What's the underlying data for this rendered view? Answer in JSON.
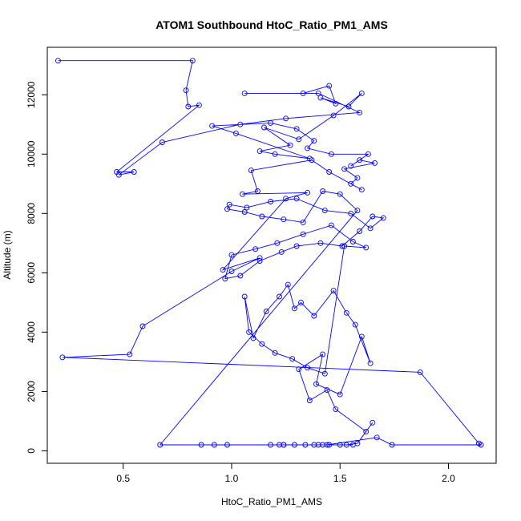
{
  "chart_data": {
    "type": "scatter",
    "title": "ATOM1 Southbound HtoC_Ratio_PM1_AMS",
    "xlabel": "HtoC_Ratio_PM1_AMS",
    "ylabel": "Altitude (m)",
    "xlim": [
      0.15,
      2.22
    ],
    "ylim": [
      -420,
      13600
    ],
    "xticks": [
      0.5,
      1.0,
      1.5,
      2.0
    ],
    "xtick_labels": [
      "0.5",
      "1.0",
      "1.5",
      "2.0"
    ],
    "yticks": [
      0,
      2000,
      4000,
      6000,
      8000,
      10000,
      12000
    ],
    "ytick_labels": [
      "0",
      "2000",
      "4000",
      "6000",
      "8000",
      "10000",
      "12000"
    ],
    "grid": false,
    "line_color": "#0000ff",
    "point_color": "#0000ff",
    "series": [
      {
        "x": [
          0.2,
          0.82,
          0.79,
          0.8,
          0.85,
          0.47,
          0.55,
          0.48,
          0.68,
          1.04,
          1.25,
          1.59,
          1.4,
          1.06,
          1.33,
          1.45,
          1.48,
          1.41,
          1.54,
          1.6,
          1.47,
          1.31,
          1.15,
          1.27,
          1.13,
          1.2,
          1.36,
          1.02,
          0.91,
          1.18,
          1.3,
          1.38,
          1.35,
          1.46,
          1.63,
          1.55,
          1.59,
          1.66,
          1.52,
          1.58,
          1.55,
          1.6,
          1.45,
          1.37,
          1.09,
          1.12,
          1.05,
          1.35,
          1.25,
          0.96,
          1.13,
          1.0,
          0.59,
          0.53,
          0.22,
          1.87,
          2.14,
          2.15,
          1.74,
          1.67,
          1.44,
          1.42,
          1.29,
          1.22,
          1.18,
          1.24,
          1.34,
          1.4,
          1.53,
          1.58,
          1.65,
          1.62,
          1.48,
          1.44,
          1.36,
          1.31,
          1.42,
          1.39,
          1.5,
          1.6,
          1.64,
          1.57,
          1.53,
          1.47,
          1.38,
          1.32,
          1.29,
          1.26,
          1.22,
          1.16,
          1.1,
          1.06,
          1.08,
          1.14,
          1.2,
          1.28,
          1.35,
          1.43,
          1.52,
          1.62,
          1.56,
          1.46,
          1.33,
          1.21,
          1.11,
          1.0,
          0.97,
          1.04,
          1.13,
          1.23,
          1.3,
          1.41,
          1.51,
          1.59,
          1.65,
          1.7,
          1.64,
          1.55,
          1.43,
          1.3,
          1.18,
          1.07,
          0.99,
          0.98,
          1.06,
          1.14,
          1.24,
          1.33,
          1.42,
          1.5,
          1.58,
          0.67,
          0.86,
          0.92,
          0.98,
          1.24,
          1.38,
          1.45,
          1.5,
          1.56
        ],
        "y": [
          13150,
          13150,
          12150,
          11600,
          11650,
          9400,
          9400,
          9300,
          10400,
          11000,
          11200,
          11400,
          12050,
          12050,
          12050,
          12300,
          11700,
          11900,
          11600,
          12050,
          11300,
          10500,
          10900,
          10300,
          10100,
          10000,
          9850,
          10700,
          10950,
          11050,
          10850,
          10450,
          10200,
          10000,
          10000,
          9600,
          9800,
          9700,
          9500,
          9200,
          9000,
          8800,
          9400,
          9800,
          9450,
          8750,
          8650,
          8700,
          8500,
          6100,
          6500,
          6050,
          4200,
          3250,
          3150,
          2650,
          250,
          200,
          200,
          450,
          200,
          200,
          200,
          200,
          200,
          200,
          200,
          200,
          200,
          250,
          950,
          650,
          1400,
          2050,
          1700,
          2750,
          3250,
          2250,
          1900,
          3850,
          2950,
          4250,
          4650,
          5400,
          4550,
          5000,
          4800,
          5600,
          5200,
          4700,
          3800,
          5200,
          4000,
          3600,
          3300,
          3100,
          2800,
          2600,
          6900,
          6850,
          7050,
          7600,
          7300,
          7000,
          6800,
          6600,
          5800,
          5900,
          6400,
          6700,
          6900,
          7000,
          6900,
          7400,
          7900,
          7850,
          7500,
          8000,
          8100,
          8500,
          8400,
          8200,
          8300,
          8150,
          8050,
          7900,
          7800,
          7700,
          8750,
          8650,
          8100,
          200,
          200,
          200,
          200,
          200,
          200,
          200,
          200,
          200
        ]
      }
    ]
  }
}
